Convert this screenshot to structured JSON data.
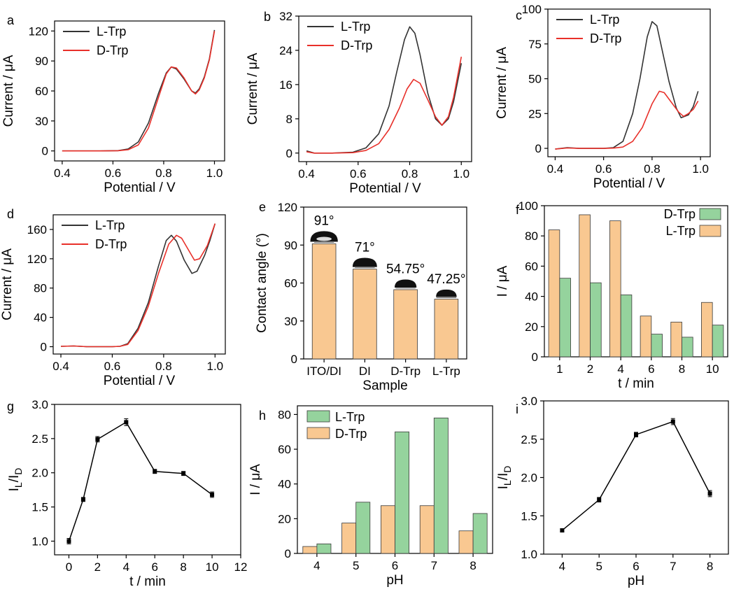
{
  "colors": {
    "l_trp_line": "#333333",
    "d_trp_line": "#e8302a",
    "bar_orange": "#f9c891",
    "bar_green": "#95d39d",
    "bar_edge": "#3a3a3a",
    "drop": "#111111"
  },
  "chart_data": [
    {
      "panel": "a",
      "type": "line",
      "xlabel": "Potential / V",
      "ylabel": "Current / μA",
      "xlim": [
        0.37,
        1.04
      ],
      "ylim": [
        -10,
        130
      ],
      "xticks": [
        "0.4",
        "0.6",
        "0.8",
        "1.0"
      ],
      "xtick_values": [
        0.4,
        0.6,
        0.8,
        1.0
      ],
      "yticks": [
        "0",
        "30",
        "60",
        "90",
        "120"
      ],
      "ytick_values": [
        0,
        30,
        60,
        90,
        120
      ],
      "legend": "top-left",
      "series": [
        {
          "name": "L-Trp",
          "color_key": "l_trp_line",
          "points": [
            [
              0.4,
              0
            ],
            [
              0.55,
              0
            ],
            [
              0.62,
              0.3
            ],
            [
              0.66,
              2
            ],
            [
              0.7,
              9
            ],
            [
              0.74,
              28
            ],
            [
              0.78,
              58
            ],
            [
              0.81,
              78
            ],
            [
              0.83,
              84
            ],
            [
              0.85,
              82
            ],
            [
              0.88,
              72
            ],
            [
              0.91,
              60
            ],
            [
              0.925,
              58
            ],
            [
              0.94,
              62
            ],
            [
              0.96,
              74
            ],
            [
              0.98,
              92
            ],
            [
              1.0,
              121
            ]
          ]
        },
        {
          "name": "D-Trp",
          "color_key": "d_trp_line",
          "points": [
            [
              0.4,
              0
            ],
            [
              0.55,
              0
            ],
            [
              0.62,
              0.2
            ],
            [
              0.66,
              1.2
            ],
            [
              0.7,
              6
            ],
            [
              0.74,
              23
            ],
            [
              0.78,
              54
            ],
            [
              0.81,
              77
            ],
            [
              0.83,
              84
            ],
            [
              0.85,
              83
            ],
            [
              0.88,
              73
            ],
            [
              0.91,
              60
            ],
            [
              0.925,
              57
            ],
            [
              0.94,
              61
            ],
            [
              0.96,
              73
            ],
            [
              0.98,
              91
            ],
            [
              1.0,
              120
            ]
          ]
        }
      ]
    },
    {
      "panel": "b",
      "type": "line",
      "xlabel": "Potential / V",
      "ylabel": "Current / μA",
      "xlim": [
        0.37,
        1.04
      ],
      "ylim": [
        -2,
        32
      ],
      "xticks": [
        "0.4",
        "0.6",
        "0.8",
        "1.0"
      ],
      "xtick_values": [
        0.4,
        0.6,
        0.8,
        1.0
      ],
      "yticks": [
        "0",
        "8",
        "16",
        "24",
        "32"
      ],
      "ytick_values": [
        0,
        8,
        16,
        24,
        32
      ],
      "legend": "top-left",
      "series": [
        {
          "name": "L-Trp",
          "color_key": "l_trp_line",
          "points": [
            [
              0.4,
              0.5
            ],
            [
              0.43,
              0
            ],
            [
              0.5,
              0
            ],
            [
              0.58,
              0.2
            ],
            [
              0.63,
              1.2
            ],
            [
              0.68,
              4.5
            ],
            [
              0.72,
              11
            ],
            [
              0.75,
              19
            ],
            [
              0.78,
              26.5
            ],
            [
              0.8,
              29.5
            ],
            [
              0.82,
              28
            ],
            [
              0.84,
              23
            ],
            [
              0.87,
              14
            ],
            [
              0.9,
              8
            ],
            [
              0.925,
              6.5
            ],
            [
              0.95,
              8
            ],
            [
              0.97,
              12
            ],
            [
              1.0,
              21
            ]
          ]
        },
        {
          "name": "D-Trp",
          "color_key": "d_trp_line",
          "points": [
            [
              0.4,
              0.3
            ],
            [
              0.43,
              0
            ],
            [
              0.5,
              0
            ],
            [
              0.58,
              0.1
            ],
            [
              0.63,
              0.6
            ],
            [
              0.68,
              2.2
            ],
            [
              0.72,
              5.5
            ],
            [
              0.76,
              10.5
            ],
            [
              0.79,
              15
            ],
            [
              0.815,
              17.2
            ],
            [
              0.84,
              16.3
            ],
            [
              0.87,
              12.5
            ],
            [
              0.9,
              8.5
            ],
            [
              0.925,
              6.5
            ],
            [
              0.95,
              8.5
            ],
            [
              0.97,
              13
            ],
            [
              1.0,
              22.5
            ]
          ]
        }
      ]
    },
    {
      "panel": "c",
      "type": "line",
      "xlabel": "Potential / V",
      "ylabel": "Current / μA",
      "xlim": [
        0.37,
        1.04
      ],
      "ylim": [
        -6,
        100
      ],
      "xticks": [
        "0.4",
        "0.6",
        "0.8",
        "1.0"
      ],
      "xtick_values": [
        0.4,
        0.6,
        0.8,
        1.0
      ],
      "yticks": [
        "0",
        "25",
        "50",
        "75",
        "100"
      ],
      "ytick_values": [
        0,
        25,
        50,
        75,
        100
      ],
      "legend": "top-left",
      "series": [
        {
          "name": "L-Trp",
          "color_key": "l_trp_line",
          "points": [
            [
              0.4,
              -0.5
            ],
            [
              0.45,
              0.5
            ],
            [
              0.5,
              0
            ],
            [
              0.6,
              0
            ],
            [
              0.64,
              0.5
            ],
            [
              0.68,
              5
            ],
            [
              0.72,
              25
            ],
            [
              0.75,
              50
            ],
            [
              0.78,
              80
            ],
            [
              0.8,
              91
            ],
            [
              0.82,
              88
            ],
            [
              0.84,
              72
            ],
            [
              0.87,
              48
            ],
            [
              0.9,
              29
            ],
            [
              0.92,
              22
            ],
            [
              0.95,
              24
            ],
            [
              0.97,
              30
            ],
            [
              0.99,
              41
            ]
          ]
        },
        {
          "name": "D-Trp",
          "color_key": "d_trp_line",
          "points": [
            [
              0.4,
              -0.5
            ],
            [
              0.45,
              0.3
            ],
            [
              0.5,
              0
            ],
            [
              0.6,
              0
            ],
            [
              0.64,
              0.2
            ],
            [
              0.68,
              1
            ],
            [
              0.72,
              5
            ],
            [
              0.76,
              15
            ],
            [
              0.8,
              32
            ],
            [
              0.83,
              41
            ],
            [
              0.85,
              40
            ],
            [
              0.88,
              33
            ],
            [
              0.91,
              26
            ],
            [
              0.93,
              23
            ],
            [
              0.95,
              25
            ],
            [
              0.97,
              28
            ],
            [
              0.99,
              34
            ]
          ]
        }
      ]
    },
    {
      "panel": "d",
      "type": "line",
      "xlabel": "Potential / V",
      "ylabel": "Current / μA",
      "xlim": [
        0.37,
        1.04
      ],
      "ylim": [
        -10,
        180
      ],
      "xticks": [
        "0.4",
        "0.6",
        "0.8",
        "1.0"
      ],
      "xtick_values": [
        0.4,
        0.6,
        0.8,
        1.0
      ],
      "yticks": [
        "0",
        "40",
        "80",
        "120",
        "160"
      ],
      "ytick_values": [
        0,
        40,
        80,
        120,
        160
      ],
      "legend": "top-left",
      "series": [
        {
          "name": "L-Trp",
          "color_key": "l_trp_line",
          "points": [
            [
              0.4,
              0.5
            ],
            [
              0.45,
              1
            ],
            [
              0.5,
              0
            ],
            [
              0.6,
              0
            ],
            [
              0.63,
              0.5
            ],
            [
              0.66,
              4
            ],
            [
              0.7,
              25
            ],
            [
              0.74,
              60
            ],
            [
              0.78,
              110
            ],
            [
              0.81,
              145
            ],
            [
              0.83,
              152
            ],
            [
              0.85,
              144
            ],
            [
              0.88,
              118
            ],
            [
              0.91,
              100
            ],
            [
              0.93,
              103
            ],
            [
              0.96,
              125
            ],
            [
              0.98,
              145
            ],
            [
              1.0,
              168
            ]
          ]
        },
        {
          "name": "D-Trp",
          "color_key": "d_trp_line",
          "points": [
            [
              0.4,
              0.5
            ],
            [
              0.45,
              1
            ],
            [
              0.5,
              0
            ],
            [
              0.6,
              0
            ],
            [
              0.63,
              0.5
            ],
            [
              0.66,
              3
            ],
            [
              0.7,
              22
            ],
            [
              0.74,
              55
            ],
            [
              0.78,
              100
            ],
            [
              0.82,
              140
            ],
            [
              0.85,
              152
            ],
            [
              0.87,
              148
            ],
            [
              0.9,
              130
            ],
            [
              0.92,
              118
            ],
            [
              0.94,
              120
            ],
            [
              0.97,
              138
            ],
            [
              1.0,
              168
            ]
          ]
        }
      ]
    },
    {
      "panel": "e",
      "type": "bar",
      "xlabel": "Sample",
      "ylabel": "Contact angle (°)",
      "categories": [
        "ITO/DI",
        "DI",
        "D-Trp",
        "L-Trp"
      ],
      "values": [
        91,
        71,
        54.75,
        47.25
      ],
      "annotations": [
        "91°",
        "71°",
        "54.75°",
        "47.25°"
      ],
      "ylim": [
        0,
        120
      ],
      "yticks": [
        "0",
        "30",
        "60",
        "90",
        "120"
      ],
      "ytick_values": [
        0,
        30,
        60,
        90,
        120
      ],
      "color_key": "bar_orange"
    },
    {
      "panel": "f",
      "type": "bar",
      "xlabel": "t / min",
      "ylabel": "I / μA",
      "categories": [
        "1",
        "2",
        "4",
        "6",
        "8",
        "10"
      ],
      "ylim": [
        0,
        100
      ],
      "yticks": [
        "0",
        "20",
        "40",
        "60",
        "80",
        "100"
      ],
      "ytick_values": [
        0,
        20,
        40,
        60,
        80,
        100
      ],
      "legend": "top-right",
      "series": [
        {
          "name": "D-Trp",
          "color_key": "bar_green",
          "values": [
            52,
            49,
            41,
            15,
            13,
            21
          ]
        },
        {
          "name": "L-Trp",
          "color_key": "bar_orange",
          "values": [
            84,
            94,
            90,
            27,
            23,
            36
          ]
        }
      ],
      "bar_order": [
        "L-Trp",
        "D-Trp"
      ]
    },
    {
      "panel": "g",
      "type": "line",
      "xlabel": "t / min",
      "ylabel": "IL/ID",
      "ylabel_main": "I",
      "ylabel_sub1": "L",
      "ylabel_mid": "/I",
      "ylabel_sub2": "D",
      "xlim": [
        -1,
        12
      ],
      "ylim": [
        0.8,
        3.0
      ],
      "xticks": [
        "0",
        "2",
        "4",
        "6",
        "8",
        "10",
        "12"
      ],
      "xtick_values": [
        0,
        2,
        4,
        6,
        8,
        10,
        12
      ],
      "yticks": [
        "1.0",
        "1.5",
        "2.0",
        "2.5",
        "3.0"
      ],
      "ytick_values": [
        1.0,
        1.5,
        2.0,
        2.5,
        3.0
      ],
      "x": [
        0,
        1,
        2,
        4,
        6,
        8,
        10
      ],
      "values": [
        1.0,
        1.61,
        2.49,
        2.74,
        2.02,
        1.99,
        1.68
      ],
      "errors": [
        0.04,
        0.03,
        0.04,
        0.05,
        0.03,
        0.03,
        0.04
      ]
    },
    {
      "panel": "h",
      "type": "bar",
      "xlabel": "pH",
      "ylabel": "I / μA",
      "categories": [
        "4",
        "5",
        "6",
        "7",
        "8"
      ],
      "ylim": [
        0,
        85
      ],
      "yticks": [
        "0",
        "20",
        "40",
        "60",
        "80"
      ],
      "ytick_values": [
        0,
        20,
        40,
        60,
        80
      ],
      "legend": "top-left",
      "series": [
        {
          "name": "L-Trp",
          "color_key": "bar_green",
          "values": [
            5.5,
            29.5,
            70,
            78,
            23
          ]
        },
        {
          "name": "D-Trp",
          "color_key": "bar_orange",
          "values": [
            4,
            17.5,
            27.5,
            27.5,
            13
          ]
        }
      ],
      "bar_order": [
        "D-Trp",
        "L-Trp"
      ]
    },
    {
      "panel": "i",
      "type": "line",
      "xlabel": "pH",
      "ylabel": "IL/ID",
      "ylabel_main": "I",
      "ylabel_sub1": "L",
      "ylabel_mid": "/I",
      "ylabel_sub2": "D",
      "xlim": [
        3.5,
        8.5
      ],
      "ylim": [
        1.0,
        3.0
      ],
      "xticks": [
        "4",
        "5",
        "6",
        "7",
        "8"
      ],
      "xtick_values": [
        4,
        5,
        6,
        7,
        8
      ],
      "yticks": [
        "1.0",
        "1.5",
        "2.0",
        "2.5",
        "3.0"
      ],
      "ytick_values": [
        1.0,
        1.5,
        2.0,
        2.5,
        3.0
      ],
      "x": [
        4,
        5,
        6,
        7,
        8
      ],
      "values": [
        1.31,
        1.71,
        2.56,
        2.73,
        1.79
      ],
      "errors": [
        0.02,
        0.03,
        0.03,
        0.04,
        0.04
      ]
    }
  ]
}
